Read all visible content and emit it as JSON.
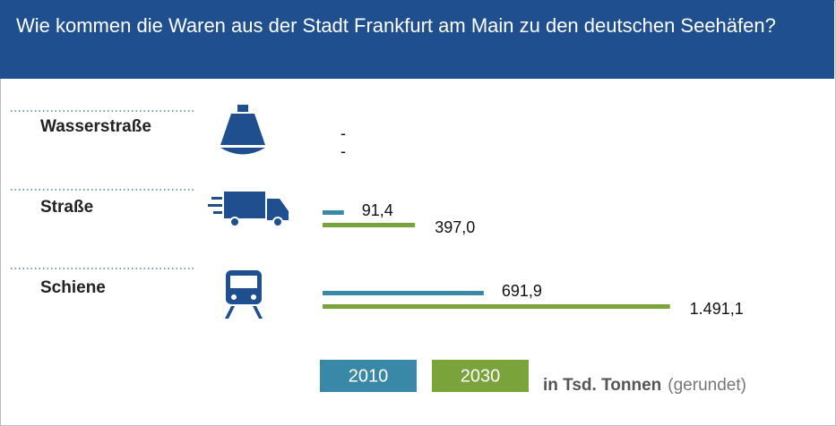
{
  "chart_data": {
    "type": "bar",
    "title": "Wie kommen die Waren aus der Stadt Frankfurt am Main zu den deutschen Seehäfen?",
    "categories": [
      "Wasserstraße",
      "Straße",
      "Schiene"
    ],
    "series": [
      {
        "name": "2010",
        "color": "#3a88a8",
        "values": [
          null,
          91.4,
          691.9
        ],
        "value_labels": [
          "-",
          "91,4",
          "691,9"
        ]
      },
      {
        "name": "2030",
        "color": "#7aa33c",
        "values": [
          null,
          397.0,
          1491.1
        ],
        "value_labels": [
          "-",
          "397,0",
          "1.491,1"
        ]
      }
    ],
    "xlim": [
      0,
      1500
    ],
    "unit": "in Tsd. Tonnen",
    "note": "(gerundet)"
  }
}
